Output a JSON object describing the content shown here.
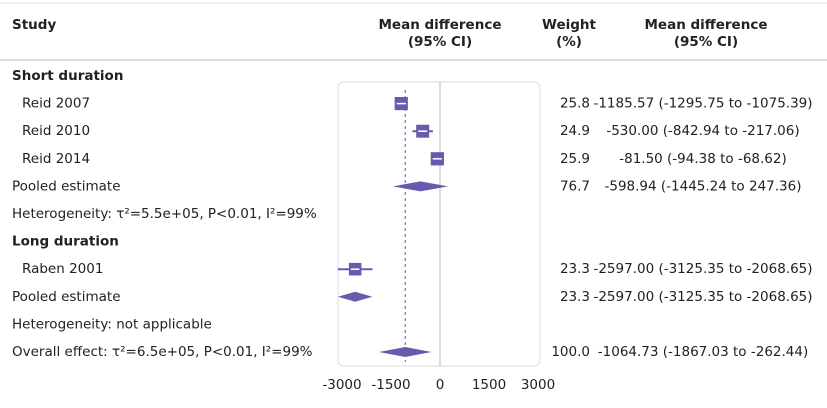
{
  "chart_data": {
    "type": "forest",
    "header": {
      "study": "Study",
      "plot": [
        "Mean difference",
        "(95% CI)"
      ],
      "weight": [
        "Weight",
        "(%)"
      ],
      "ci": [
        "Mean difference",
        "(95% CI)"
      ]
    },
    "color": "#6a5aad",
    "xlim": [
      -3000,
      3000
    ],
    "xticks": [
      -3000,
      -1500,
      0,
      1500,
      3000
    ],
    "groups": [
      {
        "name": "Short duration",
        "studies": [
          {
            "name": "Reid 2007",
            "estimate": -1185.57,
            "lower": -1295.75,
            "upper": -1075.39,
            "weight": 25.8,
            "label": "-1185.57 (-1295.75 to -1075.39)"
          },
          {
            "name": "Reid 2010",
            "estimate": -530.0,
            "lower": -842.94,
            "upper": -217.06,
            "weight": 24.9,
            "label": "-530.00 (-842.94 to -217.06)"
          },
          {
            "name": "Reid 2014",
            "estimate": -81.5,
            "lower": -94.38,
            "upper": -68.62,
            "weight": 25.9,
            "label": "-81.50 (-94.38 to -68.62)"
          }
        ],
        "pooled": {
          "name": "Pooled estimate",
          "estimate": -598.94,
          "lower": -1445.24,
          "upper": 247.36,
          "weight": 76.7,
          "label": "-598.94 (-1445.24 to 247.36)"
        },
        "heterogeneity": "Heterogeneity: τ²=5.5e+05, P<0.01, I²=99%"
      },
      {
        "name": "Long duration",
        "studies": [
          {
            "name": "Raben 2001",
            "estimate": -2597.0,
            "lower": -3125.35,
            "upper": -2068.65,
            "weight": 23.3,
            "label": "-2597.00 (-3125.35 to -2068.65)"
          }
        ],
        "pooled": {
          "name": "Pooled estimate",
          "estimate": -2597.0,
          "lower": -3125.35,
          "upper": -2068.65,
          "weight": 23.3,
          "label": "-2597.00 (-3125.35 to -2068.65)"
        },
        "heterogeneity": "Heterogeneity: not applicable"
      }
    ],
    "overall": {
      "name": "Overall effect: τ²=6.5e+05, P<0.01, I²=99%",
      "estimate": -1064.73,
      "lower": -1867.03,
      "upper": -262.44,
      "weight": {
        "value": 100,
        "label": "100.0"
      },
      "label": "-1064.73 (-1867.03 to -262.44)"
    }
  }
}
